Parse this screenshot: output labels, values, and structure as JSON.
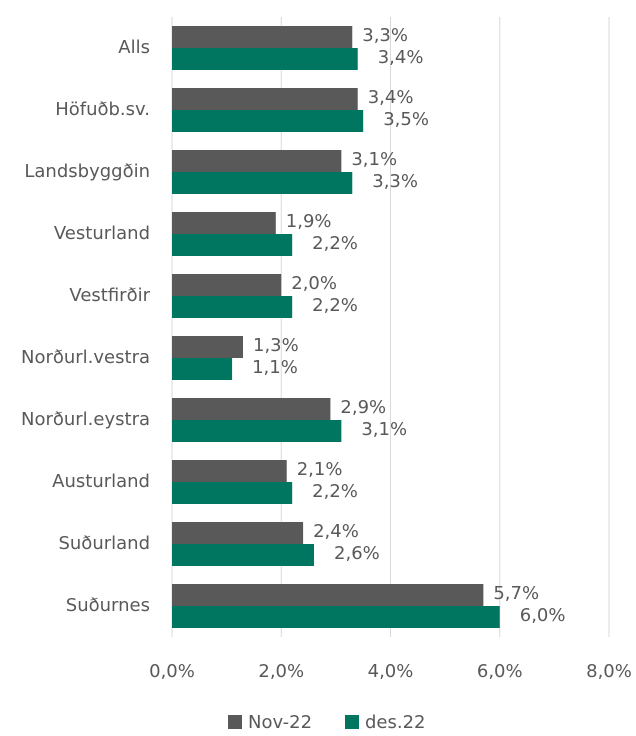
{
  "chart_data": {
    "type": "hbar",
    "categories": [
      "Alls",
      "Höfuðb.sv.",
      "Landsbyggðin",
      "Vesturland",
      "Vestfirðir",
      "Norðurl.vestra",
      "Norðurl.eystra",
      "Austurland",
      "Suðurland",
      "Suðurnes"
    ],
    "series": [
      {
        "name": "Nov-22",
        "color": "#595959",
        "values": [
          3.3,
          3.4,
          3.1,
          1.9,
          2.0,
          1.3,
          2.9,
          2.1,
          2.4,
          5.7
        ],
        "value_labels": [
          "3,3%",
          "3,4%",
          "3,1%",
          "1,9%",
          "2,0%",
          "1,3%",
          "2,9%",
          "2,1%",
          "2,4%",
          "5,7%"
        ]
      },
      {
        "name": "des.22",
        "color": "#007560",
        "values": [
          3.4,
          3.5,
          3.3,
          2.2,
          2.2,
          1.1,
          3.1,
          2.2,
          2.6,
          6.0
        ],
        "value_labels": [
          "3,4%",
          "3,5%",
          "3,3%",
          "2,2%",
          "2,2%",
          "1,1%",
          "3,1%",
          "2,2%",
          "2,6%",
          "6,0%"
        ]
      }
    ],
    "xlim": [
      0,
      8
    ],
    "xticks": [
      {
        "value": 0,
        "label": "0,0%"
      },
      {
        "value": 2,
        "label": "2,0%"
      },
      {
        "value": 4,
        "label": "4,0%"
      },
      {
        "value": 6,
        "label": "6,0%"
      },
      {
        "value": 8,
        "label": "8,0%"
      }
    ],
    "grid": true,
    "legend": "bottom"
  }
}
